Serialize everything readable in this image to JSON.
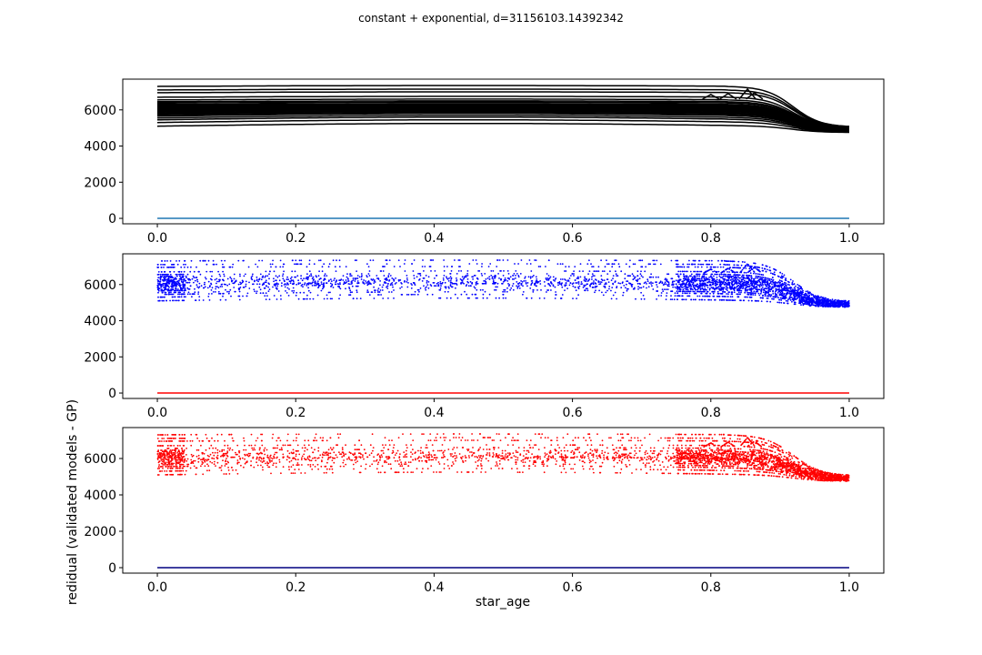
{
  "figure": {
    "suptitle": "constant + exponential, d=31156103.14392342"
  },
  "chart_data": [
    {
      "type": "line",
      "panel": "top",
      "xlabel": "",
      "ylabel": "",
      "xlim": [
        -0.05,
        1.05
      ],
      "ylim": [
        -300,
        7700
      ],
      "xticks": [
        0.0,
        0.2,
        0.4,
        0.6,
        0.8,
        1.0
      ],
      "xtick_labels": [
        "0.0",
        "0.2",
        "0.4",
        "0.6",
        "0.8",
        "1.0"
      ],
      "yticks": [
        0,
        2000,
        4000,
        6000
      ],
      "ytick_labels": [
        "0",
        "2000",
        "4000",
        "6000"
      ],
      "grid": false,
      "series": [
        {
          "style": "lines",
          "color": "#000000",
          "description_values": {
            "x_start": 0.0,
            "x_end": 1.0,
            "start_values": [
              5100,
              5300,
              5450,
              5550,
              5650,
              5720,
              5780,
              5840,
              5900,
              5950,
              6000,
              6050,
              6100,
              6150,
              6200,
              6250,
              6300,
              6380,
              6450,
              6550,
              6700,
              6950,
              7100,
              7300
            ],
            "end_range": [
              4750,
              5050
            ],
            "bumps": [
              [
                0.8,
                6850
              ],
              [
                0.825,
                6900
              ],
              [
                0.853,
                7150
              ],
              [
                0.863,
                6950
              ]
            ]
          }
        },
        {
          "style": "line",
          "color": "#1f77b4",
          "x": [
            0.0,
            1.0
          ],
          "y": [
            0,
            0
          ]
        }
      ]
    },
    {
      "type": "scatter",
      "panel": "middle",
      "xlabel": "",
      "ylabel": "",
      "xlim": [
        -0.05,
        1.05
      ],
      "ylim": [
        -300,
        7700
      ],
      "xticks": [
        0.0,
        0.2,
        0.4,
        0.6,
        0.8,
        1.0
      ],
      "xtick_labels": [
        "0.0",
        "0.2",
        "0.4",
        "0.6",
        "0.8",
        "1.0"
      ],
      "yticks": [
        0,
        2000,
        4000,
        6000
      ],
      "ytick_labels": [
        "0",
        "2000",
        "4000",
        "6000"
      ],
      "grid": false,
      "series": [
        {
          "style": "points",
          "color": "#0000ff"
        },
        {
          "style": "line",
          "color": "#ff0000",
          "x": [
            0.0,
            1.0
          ],
          "y": [
            0,
            0
          ]
        }
      ]
    },
    {
      "type": "scatter",
      "panel": "bottom",
      "xlabel": "star_age",
      "ylabel": "redidual (validated models - GP)",
      "xlim": [
        -0.05,
        1.05
      ],
      "ylim": [
        -300,
        7700
      ],
      "xticks": [
        0.0,
        0.2,
        0.4,
        0.6,
        0.8,
        1.0
      ],
      "xtick_labels": [
        "0.0",
        "0.2",
        "0.4",
        "0.6",
        "0.8",
        "1.0"
      ],
      "yticks": [
        0,
        2000,
        4000,
        6000
      ],
      "ytick_labels": [
        "0",
        "2000",
        "4000",
        "6000"
      ],
      "grid": false,
      "series": [
        {
          "style": "points",
          "color": "#ff0000"
        },
        {
          "style": "line",
          "color": "#000080",
          "x": [
            0.0,
            1.0
          ],
          "y": [
            0,
            0
          ]
        }
      ]
    }
  ]
}
